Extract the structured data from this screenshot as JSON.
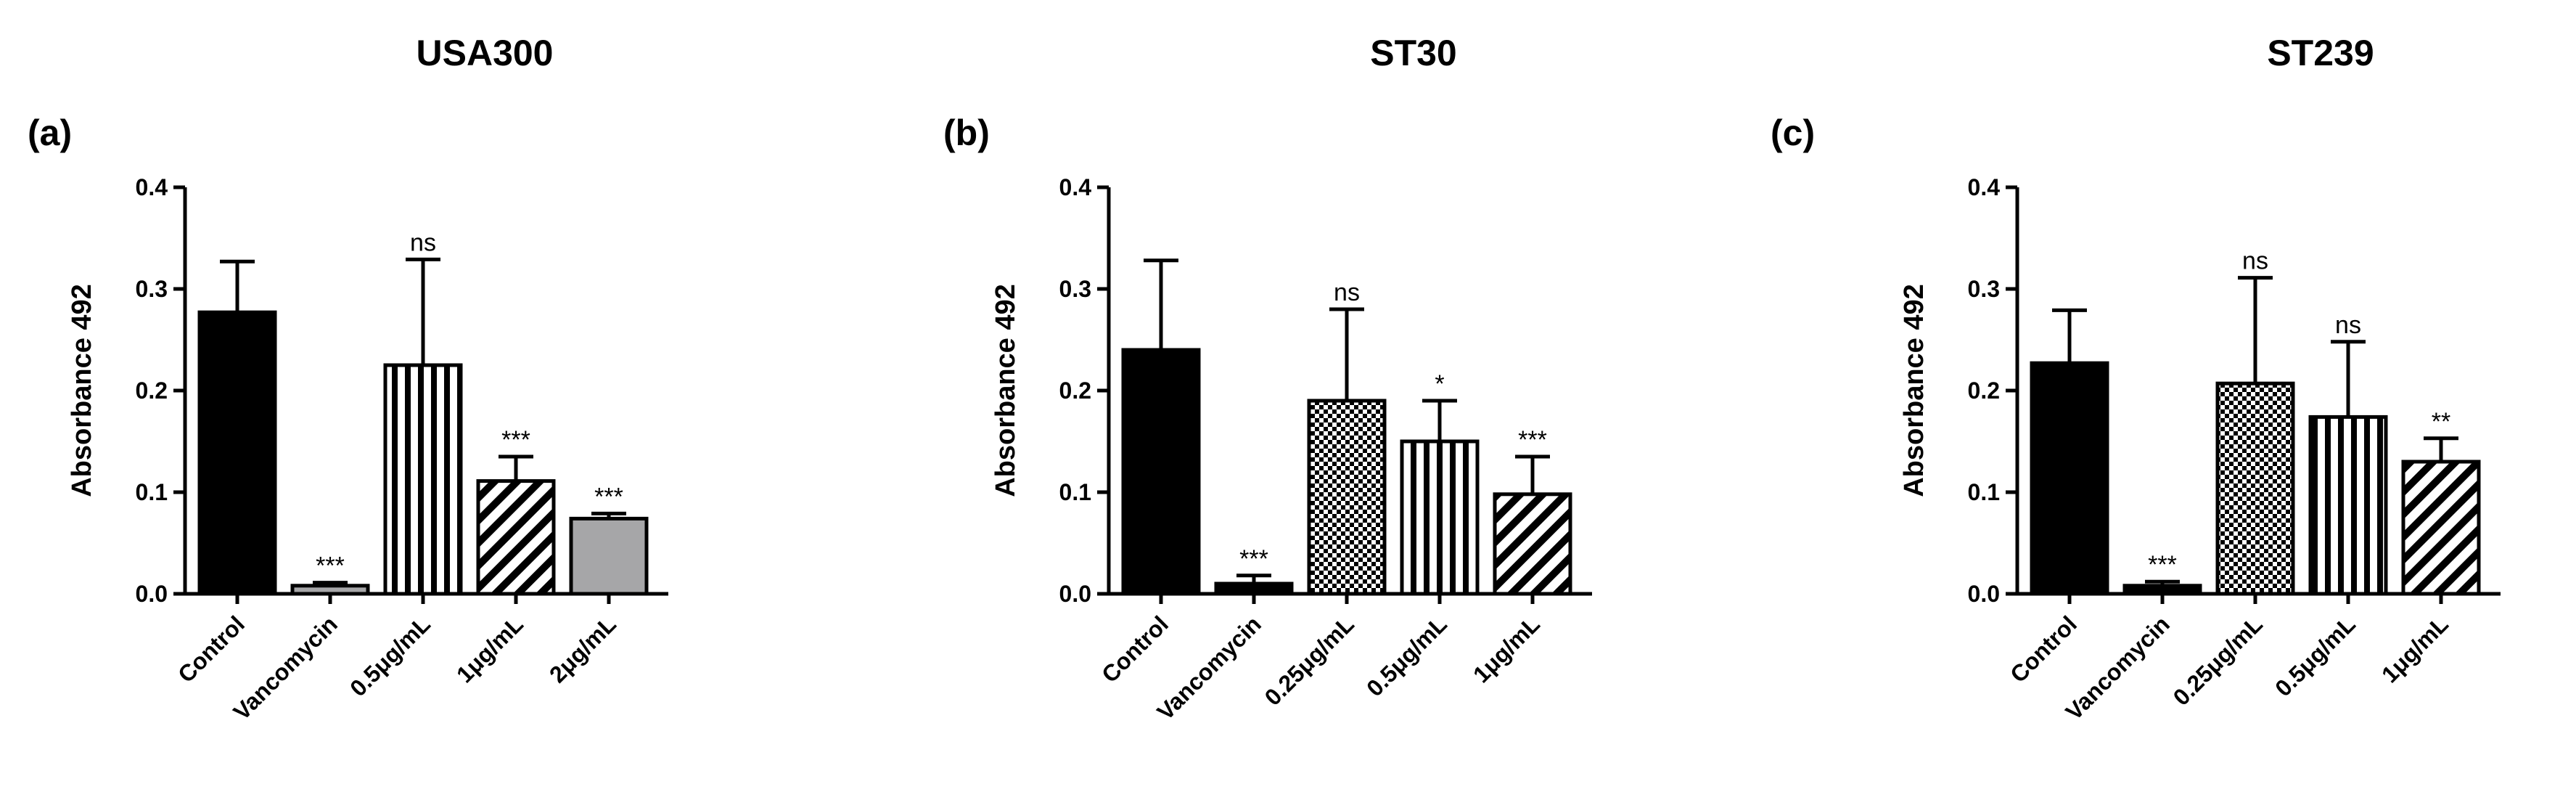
{
  "colors": {
    "axis": "#000000",
    "solid": "#000000",
    "grey": "#a6a6a8",
    "background": "#ffffff"
  },
  "chart_data": [
    {
      "type": "bar",
      "panel_label": "(a)",
      "title": "USA300",
      "xlabel": "",
      "ylabel": "Absorbance 492",
      "ylim": [
        0,
        0.4
      ],
      "yticks": [
        "0.0",
        "0.1",
        "0.2",
        "0.3",
        "0.4"
      ],
      "categories": [
        "Control",
        "Vancomycin",
        "0.5μg/mL",
        "1μg/mL",
        "2μg/mL"
      ],
      "values": [
        0.277,
        0.008,
        0.225,
        0.111,
        0.074
      ],
      "errors": [
        0.05,
        0.003,
        0.104,
        0.024,
        0.005
      ],
      "significance": [
        "",
        "***",
        "ns",
        "***",
        "***"
      ],
      "fills": [
        "solid",
        "grey",
        "vertical-stripes",
        "diagonal-stripes",
        "grey"
      ]
    },
    {
      "type": "bar",
      "panel_label": "(b)",
      "title": "ST30",
      "xlabel": "",
      "ylabel": "Absorbance 492",
      "ylim": [
        0,
        0.4
      ],
      "yticks": [
        "0.0",
        "0.1",
        "0.2",
        "0.3",
        "0.4"
      ],
      "categories": [
        "Control",
        "Vancomycin",
        "0.25μg/mL",
        "0.5μg/mL",
        "1μg/mL"
      ],
      "values": [
        0.24,
        0.01,
        0.19,
        0.15,
        0.098
      ],
      "errors": [
        0.088,
        0.008,
        0.09,
        0.04,
        0.037
      ],
      "significance": [
        "",
        "***",
        "ns",
        "*",
        "***"
      ],
      "fills": [
        "solid",
        "solid",
        "checkered",
        "vertical-stripes",
        "diagonal-stripes"
      ]
    },
    {
      "type": "bar",
      "panel_label": "(c)",
      "title": "ST239",
      "xlabel": "",
      "ylabel": "Absorbance 492",
      "ylim": [
        0,
        0.4
      ],
      "yticks": [
        "0.0",
        "0.1",
        "0.2",
        "0.3",
        "0.4"
      ],
      "categories": [
        "Control",
        "Vancomycin",
        "0.25μg/mL",
        "0.5μg/mL",
        "1μg/mL"
      ],
      "values": [
        0.227,
        0.008,
        0.207,
        0.174,
        0.13
      ],
      "errors": [
        0.052,
        0.004,
        0.104,
        0.074,
        0.023
      ],
      "significance": [
        "",
        "***",
        "ns",
        "ns",
        "**"
      ],
      "fills": [
        "solid",
        "solid",
        "checkered",
        "vertical-stripes",
        "diagonal-stripes"
      ]
    }
  ]
}
